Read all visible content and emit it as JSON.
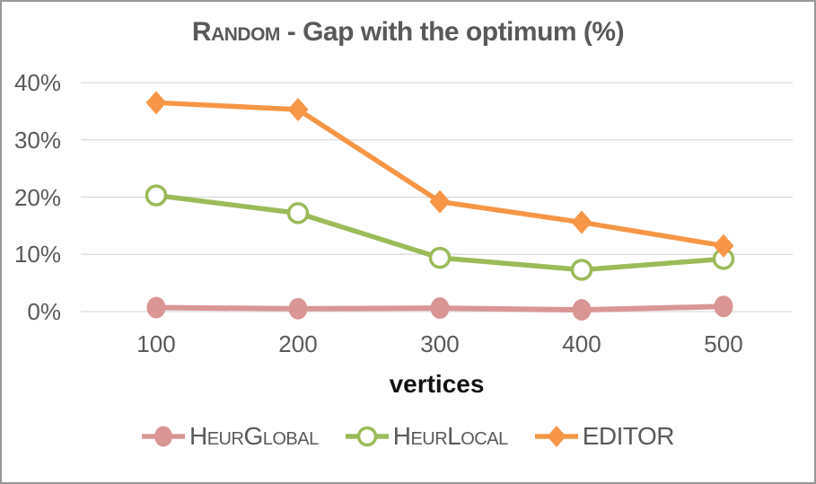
{
  "title": {
    "prefix": "Random",
    "rest": " - Gap with the optimum (%)",
    "color": "#595959"
  },
  "chart_data": {
    "type": "line",
    "title": "Random - Gap with the optimum (%)",
    "xlabel": "vertices",
    "ylabel": "",
    "categories": [
      "100",
      "200",
      "300",
      "400",
      "500"
    ],
    "y_ticks": [
      {
        "label": "40%",
        "value": 40
      },
      {
        "label": "30%",
        "value": 30
      },
      {
        "label": "20%",
        "value": 20
      },
      {
        "label": "10%",
        "value": 10
      },
      {
        "label": "0%",
        "value": 0
      }
    ],
    "ylim": [
      0,
      40
    ],
    "grid": "horizontal-only",
    "legend_position": "bottom",
    "series": [
      {
        "name": "HeurGlobal",
        "marker": "filled-circle",
        "color": "#D99694",
        "values": [
          0.7,
          0.5,
          0.6,
          0.3,
          0.9
        ]
      },
      {
        "name": "HeurLocal",
        "marker": "open-circle",
        "color": "#9BBB59",
        "values": [
          20.3,
          17.2,
          9.4,
          7.3,
          9.2
        ]
      },
      {
        "name": "EDITOR",
        "marker": "filled-diamond",
        "color": "#F79646",
        "values": [
          36.5,
          35.3,
          19.2,
          15.6,
          11.5
        ]
      }
    ],
    "colors": {
      "gridline": "#D9D9D9",
      "tick_label": "#595959",
      "axis_title": "#111111",
      "frame_border": "#999999",
      "background": "#FFFFFF"
    }
  }
}
